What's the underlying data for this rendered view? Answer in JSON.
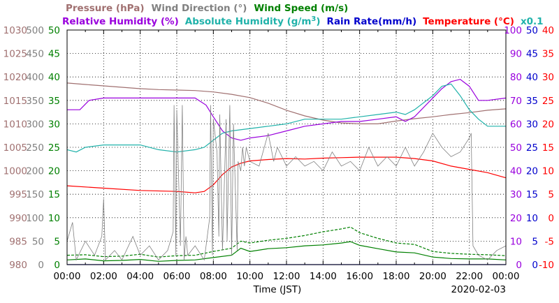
{
  "chart_data": {
    "type": "line",
    "date": "2020-02-03",
    "xlabel": "Time (JST)",
    "xlim": [
      0,
      24
    ],
    "x_ticks": [
      "00:00",
      "02:00",
      "04:00",
      "06:00",
      "08:00",
      "10:00",
      "12:00",
      "14:00",
      "16:00",
      "18:00",
      "20:00",
      "22:00",
      "00:00"
    ],
    "grid": true,
    "legend_row1": [
      {
        "text": "Pressure (hPa)",
        "color": "#a07070"
      },
      {
        "text": "Wind Direction (°)",
        "color": "#808080"
      },
      {
        "text": "Wind Speed (m/s)",
        "color": "#008000"
      }
    ],
    "legend_row2": [
      {
        "text": "Relative Humidity (%)",
        "color": "#9900dd"
      },
      {
        "text": "Absolute Humidity (g/m",
        "sup": "3",
        "close": ")",
        "color": "#20b2aa"
      },
      {
        "text": "Rain Rate(mm/h)",
        "color": "#0000cc"
      },
      {
        "text": "Temperature (°C)",
        "color": "#ff0000"
      },
      {
        "text": "x0.1",
        "color": "#20b2aa"
      }
    ],
    "axes": {
      "pressure": {
        "color": "#a07070",
        "range": [
          980,
          1030
        ],
        "ticks": [
          "980",
          "985",
          "990",
          "995",
          "1000",
          "1005",
          "1010",
          "1015",
          "1020",
          "1025",
          "1030"
        ]
      },
      "wind_direction": {
        "color": "#808080",
        "range": [
          0,
          500
        ],
        "ticks": [
          "0",
          "50",
          "100",
          "150",
          "200",
          "250",
          "300",
          "350",
          "400",
          "450",
          "500"
        ]
      },
      "wind_speed": {
        "color": "#008000",
        "range": [
          0,
          50
        ],
        "ticks": [
          "0",
          "5",
          "10",
          "15",
          "20",
          "25",
          "30",
          "35",
          "40",
          "45",
          "50"
        ]
      },
      "humidity": {
        "color": "#9900dd",
        "range": [
          0,
          100
        ],
        "ticks": [
          "0",
          "10",
          "20",
          "30",
          "40",
          "50",
          "60",
          "70",
          "80",
          "90",
          "100"
        ]
      },
      "rain_rate": {
        "color": "#0000cc",
        "range": [
          0,
          50
        ],
        "ticks": [
          "0",
          "5",
          "10",
          "15",
          "20",
          "25",
          "30",
          "35",
          "40",
          "45",
          "50"
        ]
      },
      "temperature": {
        "color": "#ff0000",
        "range": [
          -10,
          40
        ],
        "ticks": [
          "-10",
          "-5",
          "0",
          "5",
          "10",
          "15",
          "20",
          "25",
          "30",
          "35",
          "40"
        ]
      }
    },
    "series": [
      {
        "name": "Pressure",
        "axis": "pressure",
        "color": "#a07070",
        "x": [
          0,
          1,
          2,
          3,
          4,
          5,
          6,
          7,
          8,
          9,
          10,
          11,
          12,
          13,
          14,
          15,
          16,
          17,
          18,
          19,
          20,
          21,
          22,
          23,
          24
        ],
        "y": [
          1018.7,
          1018.4,
          1018.1,
          1017.8,
          1017.5,
          1017.3,
          1017.2,
          1017.1,
          1016.8,
          1016.3,
          1015.6,
          1014.4,
          1012.9,
          1011.7,
          1010.8,
          1010.2,
          1010.0,
          1010.0,
          1010.6,
          1011.1,
          1011.5,
          1012.0,
          1012.4,
          1012.9,
          1013.2
        ]
      },
      {
        "name": "Relative Humidity",
        "axis": "humidity",
        "color": "#9900dd",
        "x": [
          0,
          0.7,
          1.2,
          2,
          4,
          6,
          7,
          7.6,
          8,
          8.5,
          9,
          9.5,
          10,
          11,
          12,
          13,
          14,
          15,
          16,
          17,
          18,
          18.5,
          19,
          20,
          20.5,
          21,
          21.5,
          22,
          22.5,
          23,
          24
        ],
        "y": [
          66,
          66,
          70,
          71,
          71,
          71,
          71,
          68,
          63,
          57,
          54,
          53,
          54,
          55,
          57,
          59,
          60,
          61,
          61,
          62,
          63,
          61,
          63,
          71,
          75,
          78,
          79,
          76,
          70,
          70,
          71
        ]
      },
      {
        "name": "Absolute Humidity",
        "axis": "humidity",
        "color": "#20b2aa",
        "x": [
          0,
          0.5,
          1,
          2,
          4,
          5,
          6,
          7,
          7.5,
          8,
          8.5,
          9,
          10,
          11,
          12,
          13,
          14,
          15,
          16,
          17,
          18,
          18.5,
          19,
          20,
          20.5,
          21,
          21.5,
          22,
          22.5,
          23,
          24
        ],
        "y": [
          49,
          48,
          50,
          51,
          51,
          49,
          48,
          49,
          50,
          53,
          56,
          57,
          58,
          59,
          60,
          62,
          62,
          62,
          63,
          64,
          65,
          64,
          66,
          72,
          76,
          77,
          72,
          66,
          62,
          59,
          59
        ]
      },
      {
        "name": "Temperature",
        "axis": "temperature",
        "color": "#ff0000",
        "x": [
          0,
          2,
          4,
          6,
          7,
          7.5,
          8,
          8.5,
          9,
          9.5,
          10,
          11,
          12,
          13,
          14,
          15,
          16,
          17,
          18,
          19,
          20,
          21,
          22,
          23,
          24
        ],
        "y": [
          6.8,
          6.3,
          5.8,
          5.6,
          5.3,
          5.6,
          7.0,
          9.2,
          10.8,
          11.6,
          12.1,
          12.4,
          12.6,
          12.5,
          12.7,
          12.8,
          12.9,
          12.9,
          12.9,
          12.6,
          12.1,
          11.0,
          10.3,
          9.6,
          8.5
        ]
      },
      {
        "name": "Wind Speed (avg)",
        "axis": "wind_speed",
        "color": "#008000",
        "x": [
          0,
          1,
          2,
          3,
          4,
          5,
          6,
          7,
          8,
          9,
          9.5,
          10,
          11,
          12,
          13,
          14,
          15,
          15.5,
          16,
          17,
          18,
          19,
          20,
          21,
          22,
          23,
          24
        ],
        "y": [
          1,
          1.2,
          0.8,
          0.9,
          1.1,
          0.7,
          0.9,
          1.0,
          1.5,
          2.0,
          3.5,
          2.8,
          3.4,
          3.6,
          4.0,
          4.2,
          4.6,
          4.9,
          4.1,
          3.4,
          2.7,
          2.5,
          1.6,
          1.3,
          1.2,
          1.2,
          1.0
        ]
      },
      {
        "name": "Wind Speed (max)",
        "axis": "wind_speed",
        "color": "#008000",
        "dashed": true,
        "x": [
          0,
          1,
          2,
          3,
          4,
          5,
          6,
          7,
          8,
          9,
          9.5,
          10,
          11,
          12,
          13,
          14,
          15,
          15.5,
          16,
          17,
          18,
          19,
          20,
          21,
          22,
          23,
          24
        ],
        "y": [
          2.0,
          2.1,
          1.7,
          1.8,
          2.2,
          1.6,
          1.9,
          2.0,
          2.8,
          3.5,
          5.0,
          4.6,
          5.2,
          5.6,
          6.2,
          7.0,
          7.6,
          8.0,
          6.8,
          5.6,
          4.6,
          4.3,
          2.8,
          2.4,
          2.2,
          2.1,
          1.9
        ]
      },
      {
        "name": "Wind Direction",
        "axis": "wind_direction",
        "color": "#808080",
        "x": [
          0,
          0.3,
          0.5,
          1.0,
          1.5,
          1.9,
          2.0,
          2.1,
          2.6,
          3.0,
          3.6,
          4.0,
          4.5,
          5.0,
          5.5,
          5.8,
          5.85,
          5.95,
          6.0,
          6.2,
          6.3,
          6.4,
          6.5,
          6.6,
          7.0,
          7.5,
          7.8,
          7.85,
          7.95,
          8.0,
          8.2,
          8.3,
          8.35,
          8.5,
          8.7,
          8.75,
          8.9,
          9.0,
          9.1,
          9.3,
          9.35,
          9.5,
          9.6,
          9.7,
          9.8,
          10.0,
          10.5,
          11.0,
          11.3,
          11.5,
          12.0,
          12.5,
          13.0,
          13.5,
          14.0,
          14.5,
          15.0,
          15.5,
          16.0,
          16.5,
          17.0,
          17.5,
          18.0,
          18.5,
          19.0,
          19.5,
          20.0,
          20.5,
          21.0,
          21.5,
          22.0,
          22.1,
          22.2,
          22.5,
          23.0,
          23.5,
          24.0
        ],
        "y": [
          50,
          90,
          10,
          50,
          20,
          60,
          140,
          10,
          30,
          10,
          60,
          20,
          40,
          10,
          30,
          70,
          340,
          20,
          330,
          40,
          340,
          10,
          60,
          20,
          40,
          10,
          100,
          340,
          20,
          310,
          240,
          60,
          320,
          30,
          310,
          50,
          340,
          20,
          300,
          30,
          220,
          200,
          250,
          210,
          250,
          220,
          210,
          280,
          220,
          250,
          210,
          230,
          210,
          220,
          200,
          240,
          210,
          220,
          200,
          250,
          210,
          230,
          210,
          250,
          210,
          240,
          280,
          250,
          230,
          240,
          270,
          280,
          40,
          20,
          10,
          30,
          40
        ]
      },
      {
        "name": "Rain Rate",
        "axis": "rain_rate",
        "color": "#0000cc",
        "x": [
          0,
          24
        ],
        "y": [
          0,
          0
        ]
      }
    ]
  }
}
